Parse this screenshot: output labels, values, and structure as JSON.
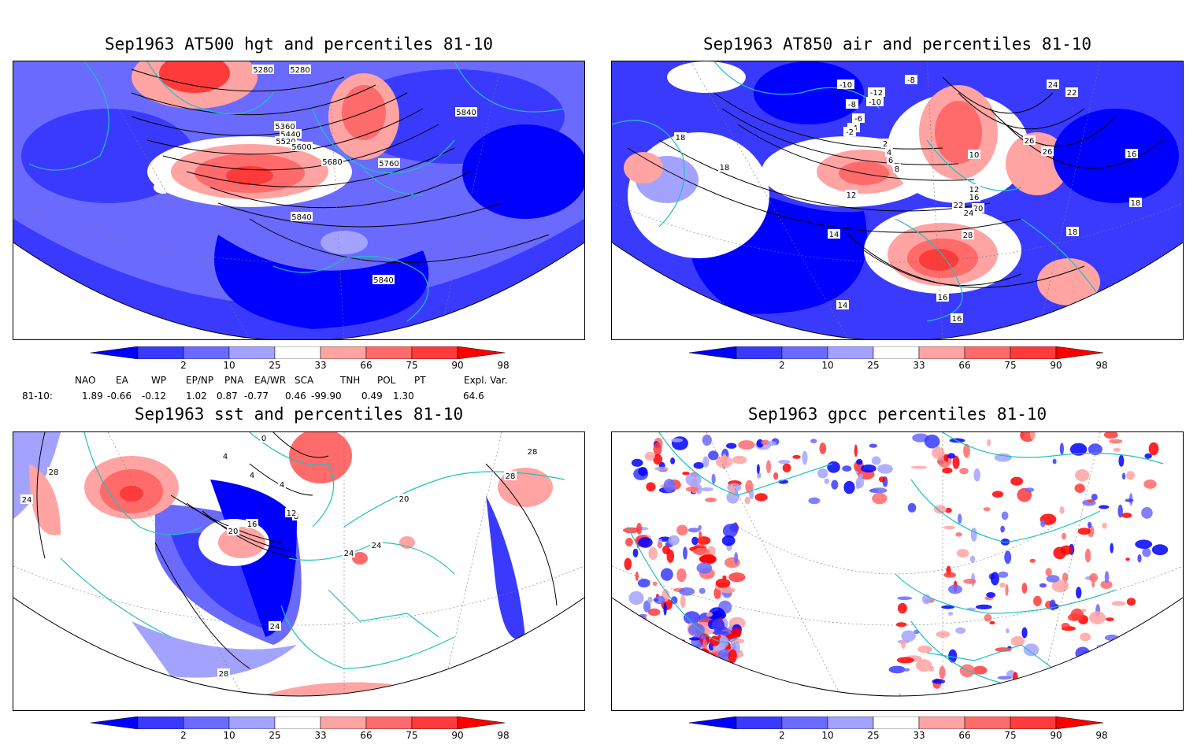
{
  "panels": {
    "hgt": {
      "title": "Sep1963 AT500 hgt and percentiles 81-10",
      "contour_labels": [
        "5280",
        "5280",
        "5360",
        "5440",
        "5520",
        "5600",
        "5680",
        "5760",
        "5840",
        "5840",
        "5840"
      ]
    },
    "air": {
      "title": "Sep1963 AT850 air and percentiles 81-10",
      "contour_labels": [
        "-10",
        "-12",
        "-10",
        "-8",
        "-8",
        "-6",
        "-4",
        "-2",
        "2",
        "4",
        "6",
        "8",
        "10",
        "12",
        "12",
        "14",
        "14",
        "16",
        "16",
        "16",
        "16",
        "18",
        "18",
        "18",
        "18",
        "20",
        "22",
        "24",
        "24",
        "26",
        "26",
        "28",
        "22"
      ]
    },
    "sst": {
      "title": "Sep1963 sst and percentiles 81-10",
      "contour_labels": [
        "28",
        "24",
        "4",
        "4",
        "0",
        "4",
        "8",
        "12",
        "16",
        "20",
        "24",
        "24",
        "20",
        "28",
        "28",
        "28",
        "24"
      ]
    },
    "gpcc": {
      "title": "Sep1963 gpcc percentiles 81-10"
    }
  },
  "colorbar": {
    "labels": [
      "2",
      "10",
      "25",
      "33",
      "66",
      "75",
      "90",
      "98"
    ],
    "colors": [
      "#0000ff",
      "#3a3aff",
      "#6a6aff",
      "#a3a3ff",
      "#ffffff",
      "#ffa3a3",
      "#ff6a6a",
      "#ff3a3a",
      "#ff0000"
    ]
  },
  "indices": {
    "headers": [
      "NAO",
      "EA",
      "WP",
      "EP/NP",
      "PNA",
      "EA/WR",
      "SCA",
      "TNH",
      "POL",
      "PT",
      "Expl. Var."
    ],
    "row_label": "81-10:",
    "values": [
      "1.89",
      "-0.66",
      "-0.12",
      "1.02",
      "0.87",
      "-0.77",
      "0.46",
      "-99.90",
      "0.49",
      "1.30",
      "64.6"
    ]
  },
  "colors": {
    "coast": "#20c0c0",
    "blue_strong": "#0000ff",
    "red_strong": "#ff0000"
  }
}
